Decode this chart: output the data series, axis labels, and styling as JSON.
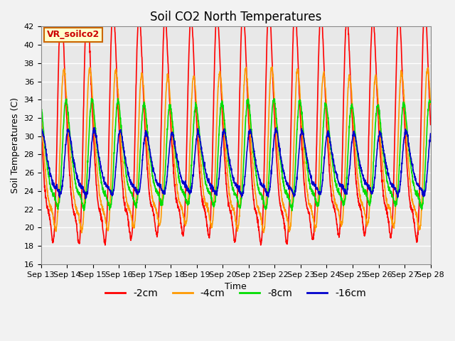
{
  "title": "Soil CO2 North Temperatures",
  "xlabel": "Time",
  "ylabel": "Soil Temperatures (C)",
  "ylim": [
    16,
    42
  ],
  "annotation_text": "VR_soilco2",
  "annotation_color": "#cc0000",
  "annotation_bg": "#ffffcc",
  "annotation_border": "#cc6600",
  "plot_bg_color": "#e8e8e8",
  "fig_bg_color": "#f2f2f2",
  "series": [
    {
      "label": "-2cm",
      "color": "#ff0000",
      "mean": 29.0,
      "amp": 11.0,
      "phase_hr": 0.0,
      "amp2": 2.0,
      "phase2": 0.5
    },
    {
      "label": "-4cm",
      "color": "#ff9900",
      "mean": 27.0,
      "amp": 7.5,
      "phase_hr": 2.5,
      "amp2": 1.5,
      "phase2": 0.8
    },
    {
      "label": "-8cm",
      "color": "#00dd00",
      "mean": 27.0,
      "amp": 5.0,
      "phase_hr": 4.5,
      "amp2": 1.0,
      "phase2": 1.2
    },
    {
      "label": "-16cm",
      "color": "#0000cc",
      "mean": 26.5,
      "amp": 3.0,
      "phase_hr": 6.5,
      "amp2": 0.5,
      "phase2": 1.8
    }
  ],
  "xtick_labels": [
    "Sep 13",
    "Sep 14",
    "Sep 15",
    "Sep 16",
    "Sep 17",
    "Sep 18",
    "Sep 19",
    "Sep 20",
    "Sep 21",
    "Sep 22",
    "Sep 23",
    "Sep 24",
    "Sep 25",
    "Sep 26",
    "Sep 27",
    "Sep 28"
  ],
  "grid_color": "#ffffff",
  "title_fontsize": 12,
  "axis_fontsize": 9,
  "tick_fontsize": 8,
  "legend_fontsize": 10,
  "linewidth": 1.2,
  "n_days": 15,
  "points_per_day": 144
}
